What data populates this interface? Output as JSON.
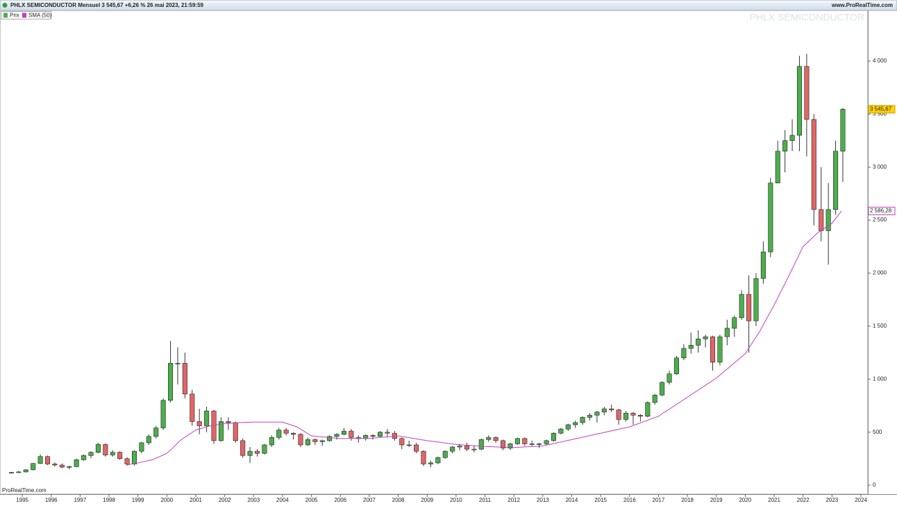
{
  "chart_data": {
    "type": "candlestick",
    "title": "PHLX SEMICONDUCTOR Mensuel 3 545,67 +6,26 % 26 mai 2023, 21:59:59",
    "source": "www.ProRealTime.com",
    "watermark": "PHLX SEMICONDUCTOR",
    "footer": "ProRealTime.com",
    "name": "Prix",
    "up_color": "#4cae4c",
    "down_color": "#e06666",
    "last_label": "3 545,67",
    "x": [
      1994.5,
      1994.75,
      1995,
      1995.25,
      1995.5,
      1995.75,
      1996,
      1996.25,
      1996.5,
      1996.75,
      1997,
      1997.25,
      1997.5,
      1997.75,
      1998,
      1998.25,
      1998.5,
      1998.75,
      1999,
      1999.25,
      1999.5,
      1999.75,
      2000,
      2000.25,
      2000.5,
      2000.75,
      2001,
      2001.25,
      2001.5,
      2001.75,
      2002,
      2002.25,
      2002.5,
      2002.75,
      2003,
      2003.25,
      2003.5,
      2003.75,
      2004,
      2004.25,
      2004.5,
      2004.75,
      2005,
      2005.25,
      2005.5,
      2005.75,
      2006,
      2006.25,
      2006.5,
      2006.75,
      2007,
      2007.25,
      2007.5,
      2007.75,
      2008,
      2008.25,
      2008.5,
      2008.75,
      2009,
      2009.25,
      2009.5,
      2009.75,
      2010,
      2010.25,
      2010.5,
      2010.75,
      2011,
      2011.25,
      2011.5,
      2011.75,
      2012,
      2012.25,
      2012.5,
      2012.75,
      2013,
      2013.25,
      2013.5,
      2013.75,
      2014,
      2014.25,
      2014.5,
      2014.75,
      2015,
      2015.25,
      2015.5,
      2015.75,
      2016,
      2016.25,
      2016.5,
      2016.75,
      2017,
      2017.25,
      2017.5,
      2017.75,
      2018,
      2018.25,
      2018.5,
      2018.75,
      2019,
      2019.25,
      2019.5,
      2019.75,
      2020,
      2020.25,
      2020.5,
      2020.75,
      2021,
      2021.25,
      2021.5,
      2021.75,
      2022,
      2022.25,
      2022.5,
      2022.75,
      2023,
      2023.25
    ],
    "open": [
      115,
      120,
      125,
      145,
      205,
      270,
      200,
      190,
      170,
      175,
      240,
      280,
      310,
      385,
      285,
      310,
      250,
      200,
      320,
      400,
      460,
      540,
      800,
      1150,
      1150,
      860,
      600,
      560,
      700,
      420,
      600,
      590,
      420,
      280,
      320,
      300,
      380,
      450,
      520,
      490,
      480,
      380,
      430,
      410,
      420,
      460,
      480,
      510,
      450,
      440,
      470,
      460,
      500,
      490,
      440,
      380,
      380,
      320,
      200,
      210,
      260,
      320,
      360,
      370,
      340,
      340,
      430,
      450,
      420,
      350,
      390,
      440,
      390,
      390,
      390,
      420,
      490,
      530,
      570,
      590,
      640,
      660,
      690,
      720,
      710,
      620,
      680,
      660,
      650,
      780,
      850,
      970,
      1050,
      1200,
      1290,
      1320,
      1380,
      1400,
      1160,
      1400,
      1480,
      1580,
      1800,
      1550,
      1950,
      2200,
      2850,
      3150,
      3250,
      3300,
      3950,
      3450,
      2600,
      2400,
      2600,
      3150
    ],
    "high": [
      125,
      135,
      150,
      210,
      290,
      280,
      215,
      205,
      185,
      250,
      290,
      320,
      400,
      395,
      330,
      320,
      265,
      330,
      410,
      480,
      560,
      820,
      1360,
      1300,
      1250,
      900,
      720,
      740,
      710,
      640,
      640,
      600,
      440,
      360,
      340,
      390,
      470,
      540,
      540,
      500,
      490,
      450,
      440,
      430,
      470,
      490,
      540,
      530,
      470,
      480,
      480,
      510,
      530,
      510,
      450,
      420,
      400,
      330,
      230,
      270,
      330,
      370,
      390,
      400,
      370,
      440,
      470,
      460,
      430,
      400,
      450,
      450,
      420,
      400,
      430,
      500,
      540,
      580,
      610,
      650,
      680,
      700,
      740,
      760,
      720,
      700,
      690,
      670,
      790,
      860,
      980,
      1080,
      1220,
      1330,
      1440,
      1460,
      1420,
      1410,
      1420,
      1560,
      1600,
      1840,
      1980,
      2000,
      2300,
      2900,
      3250,
      3350,
      3450,
      4050,
      4070,
      3500,
      3000,
      2850,
      3250,
      3560
    ],
    "low": [
      110,
      115,
      120,
      140,
      200,
      190,
      175,
      160,
      150,
      170,
      230,
      255,
      300,
      270,
      270,
      240,
      185,
      185,
      300,
      380,
      440,
      520,
      780,
      950,
      820,
      560,
      480,
      500,
      390,
      410,
      520,
      400,
      260,
      210,
      270,
      290,
      360,
      430,
      470,
      430,
      360,
      370,
      380,
      370,
      410,
      430,
      470,
      420,
      400,
      420,
      430,
      450,
      450,
      420,
      340,
      360,
      300,
      180,
      170,
      200,
      250,
      300,
      330,
      320,
      310,
      330,
      410,
      400,
      330,
      330,
      380,
      370,
      370,
      350,
      380,
      410,
      480,
      510,
      540,
      570,
      610,
      590,
      660,
      690,
      570,
      600,
      570,
      600,
      640,
      760,
      840,
      950,
      1040,
      1180,
      1240,
      1250,
      1300,
      1080,
      1130,
      1320,
      1400,
      1560,
      1250,
      1500,
      1900,
      2150,
      2850,
      2950,
      3150,
      3150,
      3100,
      2450,
      2300,
      2080,
      2550,
      2860
    ],
    "close": [
      120,
      125,
      145,
      205,
      270,
      200,
      190,
      170,
      175,
      240,
      280,
      310,
      385,
      285,
      310,
      250,
      200,
      320,
      400,
      460,
      540,
      800,
      1150,
      1150,
      860,
      600,
      560,
      700,
      420,
      600,
      590,
      420,
      280,
      320,
      300,
      380,
      450,
      520,
      490,
      480,
      380,
      430,
      410,
      420,
      460,
      480,
      510,
      450,
      440,
      470,
      460,
      500,
      490,
      440,
      380,
      380,
      320,
      200,
      210,
      260,
      320,
      360,
      370,
      340,
      340,
      430,
      450,
      420,
      350,
      390,
      440,
      390,
      390,
      390,
      420,
      490,
      530,
      570,
      590,
      640,
      660,
      690,
      720,
      710,
      620,
      680,
      660,
      650,
      780,
      850,
      970,
      1050,
      1200,
      1290,
      1320,
      1380,
      1400,
      1160,
      1400,
      1480,
      1580,
      1800,
      1550,
      1950,
      2200,
      2850,
      3150,
      3250,
      3300,
      3950,
      3450,
      2600,
      2400,
      2600,
      3150,
      3545.67
    ],
    "sma": {
      "name": "SMA (50)",
      "color": "#c040c0",
      "last_label": "2 586,28",
      "x": [
        1998.6,
        1999,
        1999.5,
        2000,
        2000.5,
        2001,
        2001.5,
        2002,
        2002.5,
        2003,
        2004,
        2004.5,
        2005,
        2006,
        2007,
        2008,
        2009,
        2010,
        2011,
        2012,
        2013,
        2014,
        2015,
        2016,
        2017,
        2018,
        2019,
        2020,
        2020.5,
        2021,
        2021.5,
        2022,
        2022.5,
        2023,
        2023.33
      ],
      "values": [
        190,
        210,
        240,
        300,
        430,
        520,
        560,
        580,
        590,
        595,
        595,
        550,
        465,
        440,
        440,
        465,
        420,
        385,
        365,
        355,
        370,
        430,
        490,
        550,
        650,
        830,
        1010,
        1240,
        1450,
        1700,
        1970,
        2250,
        2380,
        2470,
        2586.28
      ]
    },
    "xlim": [
      1994.23,
      2024.24
    ],
    "xticks": [
      1995,
      1996,
      1997,
      1998,
      1999,
      2000,
      2001,
      2002,
      2003,
      2004,
      2005,
      2006,
      2007,
      2008,
      2009,
      2010,
      2011,
      2012,
      2013,
      2014,
      2015,
      2016,
      2017,
      2018,
      2019,
      2020,
      2021,
      2022,
      2023,
      2024
    ],
    "ylim": [
      -85,
      4478
    ],
    "yticks": [
      0,
      500,
      {
        "value": 1000,
        "label": "1 000"
      },
      {
        "value": 1500,
        "label": "1 500"
      },
      {
        "value": 2000,
        "label": "2 000"
      },
      {
        "value": 2500,
        "label": "2 500"
      },
      {
        "value": 3000,
        "label": "3 000"
      },
      {
        "value": 3500,
        "label": "3 500"
      },
      {
        "value": 4000,
        "label": "4 000"
      }
    ]
  }
}
